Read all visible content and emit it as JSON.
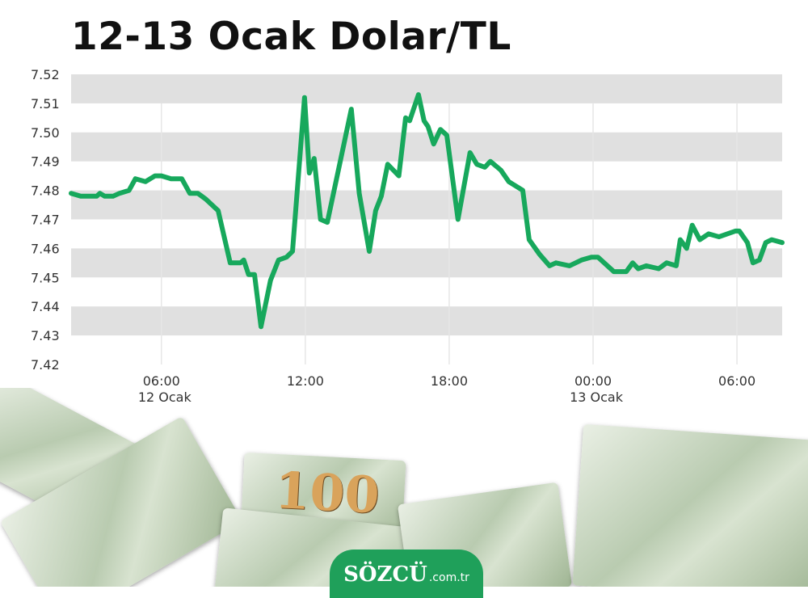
{
  "chart_data": {
    "type": "line",
    "title": "12-13 Ocak Dolar/TL",
    "xlabel": "",
    "ylabel": "",
    "ylim": [
      7.42,
      7.52
    ],
    "yticks": [
      "7.52",
      "7.51",
      "7.50",
      "7.49",
      "7.48",
      "7.47",
      "7.46",
      "7.45",
      "7.44",
      "7.43",
      "7.42"
    ],
    "xlim": [
      "12 Ocak 02:14",
      "13 Ocak 07:53"
    ],
    "xticks": [
      {
        "time": "12 Ocak 06:00",
        "label": "06:00",
        "sublabel": "12 Ocak"
      },
      {
        "time": "12 Ocak 12:00",
        "label": "12:00",
        "sublabel": ""
      },
      {
        "time": "12 Ocak 18:00",
        "label": "18:00",
        "sublabel": ""
      },
      {
        "time": "13 Ocak 00:00",
        "label": "00:00",
        "sublabel": "13 Ocak"
      },
      {
        "time": "13 Ocak 06:00",
        "label": "06:00",
        "sublabel": ""
      }
    ],
    "grid": "horizontal bands + vertical lines",
    "colors": {
      "line": "#17a85c",
      "band": "#e0e0e0",
      "grid": "#e6e6e6"
    },
    "series": [
      {
        "points": [
          [
            "12 Ocak 02:14",
            7.479
          ],
          [
            "12 Ocak 02:38",
            7.478
          ],
          [
            "12 Ocak 02:54",
            7.478
          ],
          [
            "12 Ocak 03:18",
            7.478
          ],
          [
            "12 Ocak 03:26",
            7.479
          ],
          [
            "12 Ocak 03:38",
            7.478
          ],
          [
            "12 Ocak 03:59",
            7.478
          ],
          [
            "12 Ocak 04:15",
            7.479
          ],
          [
            "12 Ocak 04:39",
            7.48
          ],
          [
            "12 Ocak 04:55",
            7.484
          ],
          [
            "12 Ocak 05:20",
            7.483
          ],
          [
            "12 Ocak 05:44",
            7.485
          ],
          [
            "12 Ocak 06:00",
            7.485
          ],
          [
            "12 Ocak 06:24",
            7.484
          ],
          [
            "12 Ocak 06:51",
            7.484
          ],
          [
            "12 Ocak 07:11",
            7.479
          ],
          [
            "12 Ocak 07:31",
            7.479
          ],
          [
            "12 Ocak 07:51",
            7.477
          ],
          [
            "12 Ocak 08:22",
            7.473
          ],
          [
            "12 Ocak 08:52",
            7.455
          ],
          [
            "12 Ocak 09:18",
            7.455
          ],
          [
            "12 Ocak 09:26",
            7.456
          ],
          [
            "12 Ocak 09:38",
            7.451
          ],
          [
            "12 Ocak 09:53",
            7.451
          ],
          [
            "12 Ocak 10:09",
            7.433
          ],
          [
            "12 Ocak 10:33",
            7.449
          ],
          [
            "12 Ocak 10:53",
            7.456
          ],
          [
            "12 Ocak 11:13",
            7.457
          ],
          [
            "12 Ocak 11:28",
            7.459
          ],
          [
            "12 Ocak 11:58",
            7.512
          ],
          [
            "12 Ocak 12:10",
            7.486
          ],
          [
            "12 Ocak 12:22",
            7.491
          ],
          [
            "12 Ocak 12:38",
            7.47
          ],
          [
            "12 Ocak 12:55",
            7.469
          ],
          [
            "12 Ocak 13:55",
            7.508
          ],
          [
            "12 Ocak 14:15",
            7.479
          ],
          [
            "12 Ocak 14:40",
            7.459
          ],
          [
            "12 Ocak 14:56",
            7.473
          ],
          [
            "12 Ocak 15:10",
            7.478
          ],
          [
            "12 Ocak 15:26",
            7.489
          ],
          [
            "12 Ocak 15:54",
            7.485
          ],
          [
            "12 Ocak 16:11",
            7.505
          ],
          [
            "12 Ocak 16:21",
            7.504
          ],
          [
            "12 Ocak 16:43",
            7.513
          ],
          [
            "12 Ocak 16:57",
            7.504
          ],
          [
            "12 Ocak 17:07",
            7.502
          ],
          [
            "12 Ocak 17:21",
            7.496
          ],
          [
            "12 Ocak 17:38",
            7.501
          ],
          [
            "12 Ocak 17:54",
            7.499
          ],
          [
            "12 Ocak 18:22",
            7.47
          ],
          [
            "12 Ocak 18:52",
            7.493
          ],
          [
            "12 Ocak 19:09",
            7.489
          ],
          [
            "12 Ocak 19:29",
            7.488
          ],
          [
            "12 Ocak 19:43",
            7.49
          ],
          [
            "12 Ocak 20:09",
            7.487
          ],
          [
            "12 Ocak 20:29",
            7.483
          ],
          [
            "12 Ocak 21:04",
            7.48
          ],
          [
            "12 Ocak 21:20",
            7.463
          ],
          [
            "12 Ocak 21:46",
            7.458
          ],
          [
            "12 Ocak 22:11",
            7.454
          ],
          [
            "12 Ocak 22:27",
            7.455
          ],
          [
            "12 Ocak 23:01",
            7.454
          ],
          [
            "12 Ocak 23:31",
            7.456
          ],
          [
            "12 Ocak 23:56",
            7.457
          ],
          [
            "13 Ocak 00:12",
            7.457
          ],
          [
            "13 Ocak 00:52",
            7.452
          ],
          [
            "13 Ocak 01:23",
            7.452
          ],
          [
            "13 Ocak 01:39",
            7.455
          ],
          [
            "13 Ocak 01:53",
            7.453
          ],
          [
            "13 Ocak 02:13",
            7.454
          ],
          [
            "13 Ocak 02:44",
            7.453
          ],
          [
            "13 Ocak 03:04",
            7.455
          ],
          [
            "13 Ocak 03:28",
            7.454
          ],
          [
            "13 Ocak 03:38",
            7.463
          ],
          [
            "13 Ocak 03:54",
            7.46
          ],
          [
            "13 Ocak 04:08",
            7.468
          ],
          [
            "13 Ocak 04:27",
            7.463
          ],
          [
            "13 Ocak 04:49",
            7.465
          ],
          [
            "13 Ocak 05:15",
            7.464
          ],
          [
            "13 Ocak 05:56",
            7.466
          ],
          [
            "13 Ocak 06:06",
            7.466
          ],
          [
            "13 Ocak 06:26",
            7.462
          ],
          [
            "13 Ocak 06:40",
            7.455
          ],
          [
            "13 Ocak 06:56",
            7.456
          ],
          [
            "13 Ocak 07:12",
            7.462
          ],
          [
            "13 Ocak 07:27",
            7.463
          ],
          [
            "13 Ocak 07:53",
            7.462
          ]
        ]
      }
    ]
  },
  "decor": {
    "bill_denomination": "100",
    "logo": {
      "main": "SÖZCÜ",
      "tld": ".com.tr",
      "color": "#1fa05a"
    }
  }
}
